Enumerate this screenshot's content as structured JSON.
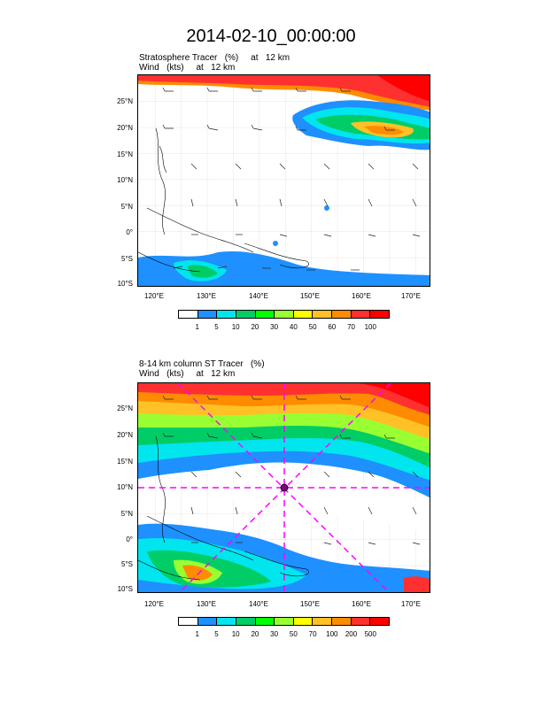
{
  "title": "2014-02-10_00:00:00",
  "panels": [
    {
      "label_line1": "Stratosphere Tracer   (%)     at   12 km",
      "label_line2": "Wind   (kts)     at   12 km",
      "lat_ticks": [
        "25°N",
        "20°N",
        "15°N",
        "10°N",
        "5°N",
        "0°",
        "5°S",
        "10°S"
      ],
      "lon_ticks": [
        "120°E",
        "130°E",
        "140°E",
        "150°E",
        "160°E",
        "170°E"
      ],
      "colorbar": {
        "colors": [
          "#ffffff",
          "#1e90ff",
          "#00e5ee",
          "#00cd66",
          "#00ff00",
          "#9aff32",
          "#ffff00",
          "#ffc125",
          "#ff8c00",
          "#ff3030",
          "#ff0000"
        ],
        "labels": [
          "1",
          "5",
          "10",
          "20",
          "30",
          "40",
          "50",
          "60",
          "70",
          "100"
        ]
      }
    },
    {
      "label_line1": "8-14 km column ST Tracer   (%)",
      "label_line2": "Wind   (kts)     at   12 km",
      "lat_ticks": [
        "25°N",
        "20°N",
        "15°N",
        "10°N",
        "5°N",
        "0°",
        "5°S",
        "10°S"
      ],
      "lon_ticks": [
        "120°E",
        "130°E",
        "140°E",
        "150°E",
        "160°E",
        "170°E"
      ],
      "colorbar": {
        "colors": [
          "#ffffff",
          "#1e90ff",
          "#00e5ee",
          "#00cd66",
          "#00ff00",
          "#9aff32",
          "#ffff00",
          "#ffc125",
          "#ff8c00",
          "#ff3030",
          "#ff0000"
        ],
        "labels": [
          "1",
          "5",
          "10",
          "20",
          "30",
          "50",
          "70",
          "100",
          "200",
          "500"
        ]
      }
    }
  ]
}
